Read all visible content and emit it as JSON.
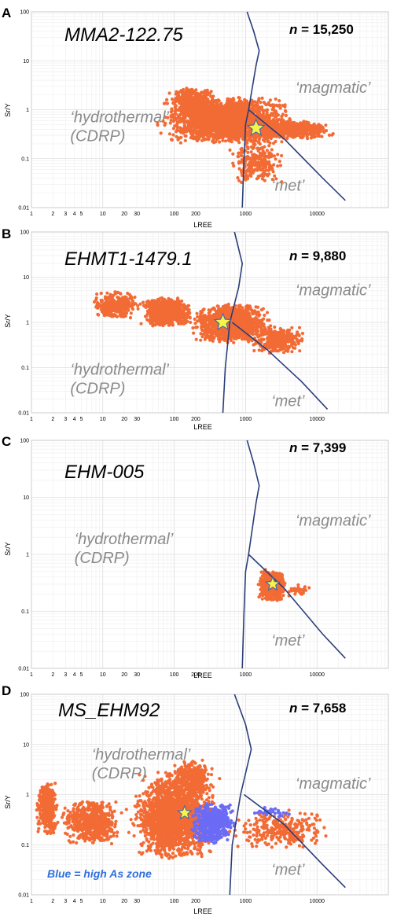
{
  "chart_data": [
    {
      "panel_letter": "A",
      "type": "scatter",
      "sample": "MMA2-122.75",
      "n_label": "n",
      "n_value": "= 15,250",
      "xlabel": "LREE",
      "ylabel": "Sr/Y",
      "xlim": [
        1,
        100000
      ],
      "ylim": [
        0.01,
        100
      ],
      "xscale": "log",
      "yscale": "log",
      "grid": true,
      "x_ticks": [
        "1",
        "2",
        "3",
        "4",
        "5",
        "10",
        "20",
        "30",
        "100",
        "200",
        "1000",
        "10000"
      ],
      "y_ticks": [
        "0.01",
        "0.1",
        "1",
        "10",
        "100"
      ],
      "regions": [
        {
          "lines": [
            "‘hydrothermal’",
            "(CDRP)"
          ],
          "x": 3.5,
          "y": 0.55
        },
        {
          "lines": [
            "‘magmatic’"
          ],
          "x": 5000,
          "y": 2.2
        },
        {
          "lines": [
            "‘met’"
          ],
          "x": 2300,
          "y": 0.022
        }
      ],
      "boundaries": [
        {
          "name": "vertical",
          "points": [
            [
              900,
              0.01
            ],
            [
              950,
              0.1
            ],
            [
              1000,
              0.5
            ],
            [
              1100,
              1
            ],
            [
              1400,
              8
            ],
            [
              1550,
              16
            ],
            [
              1300,
              40
            ],
            [
              1050,
              100
            ]
          ]
        },
        {
          "name": "diagonal",
          "points": [
            [
              1100,
              1
            ],
            [
              3500,
              0.25
            ],
            [
              12000,
              0.04
            ],
            [
              25000,
              0.014
            ]
          ]
        }
      ],
      "series": [
        {
          "color": "#F26B35",
          "clusters": [
            {
              "x": [
                50,
                6000
              ],
              "y": [
                0.2,
                1.8
              ],
              "n": 2200
            },
            {
              "x": [
                80,
                400
              ],
              "y": [
                0.8,
                2.8
              ],
              "n": 500
            },
            {
              "x": [
                700,
                20000
              ],
              "y": [
                0.25,
                0.6
              ],
              "n": 600
            },
            {
              "x": [
                500,
                4000
              ],
              "y": [
                0.03,
                0.25
              ],
              "n": 250
            }
          ]
        }
      ],
      "star": {
        "x": 1400,
        "y": 0.42
      }
    },
    {
      "panel_letter": "B",
      "type": "scatter",
      "sample": "EHMT1-1479.1",
      "n_label": "n",
      "n_value": "= 9,880",
      "xlabel": "LREE",
      "ylabel": "Sr/Y",
      "xlim": [
        1,
        100000
      ],
      "ylim": [
        0.01,
        100
      ],
      "xscale": "log",
      "yscale": "log",
      "grid": true,
      "x_ticks": [
        "1",
        "2",
        "3",
        "4",
        "5",
        "10",
        "20",
        "30",
        "100",
        "200",
        "1000",
        "10000"
      ],
      "y_ticks": [
        "0.01",
        "0.1",
        "1",
        "10",
        "100"
      ],
      "regions": [
        {
          "lines": [
            "‘hydrothermal’",
            "(CDRP)"
          ],
          "x": 3.5,
          "y": 0.07
        },
        {
          "lines": [
            "‘magmatic’"
          ],
          "x": 5000,
          "y": 4
        },
        {
          "lines": [
            "‘met’"
          ],
          "x": 2300,
          "y": 0.014
        }
      ],
      "boundaries": [
        {
          "name": "vertical",
          "points": [
            [
              480,
              0.01
            ],
            [
              520,
              0.1
            ],
            [
              600,
              1
            ],
            [
              800,
              6
            ],
            [
              900,
              20
            ],
            [
              700,
              100
            ]
          ]
        },
        {
          "name": "diagonal",
          "points": [
            [
              650,
              1
            ],
            [
              2000,
              0.25
            ],
            [
              6000,
              0.05
            ],
            [
              14000,
              0.012
            ]
          ]
        }
      ],
      "series": [
        {
          "color": "#F26B35",
          "clusters": [
            {
              "x": [
                6,
                40
              ],
              "y": [
                1.2,
                4.8
              ],
              "n": 300
            },
            {
              "x": [
                30,
                200
              ],
              "y": [
                0.8,
                3.5
              ],
              "n": 800
            },
            {
              "x": [
                150,
                2500
              ],
              "y": [
                0.35,
                2.6
              ],
              "n": 1400
            },
            {
              "x": [
                1000,
                8000
              ],
              "y": [
                0.2,
                0.8
              ],
              "n": 350
            }
          ]
        }
      ],
      "star": {
        "x": 480,
        "y": 1
      }
    },
    {
      "panel_letter": "C",
      "type": "scatter",
      "sample": "EHM-005",
      "n_label": "n",
      "n_value": "= 7,399",
      "xlabel": "LREE",
      "ylabel": "Sr/Y",
      "xlim": [
        1,
        100000
      ],
      "ylim": [
        0.01,
        100
      ],
      "xscale": "log",
      "yscale": "log",
      "grid": true,
      "x_ticks": [
        "1",
        "2",
        "3",
        "4",
        "5",
        "10",
        "20",
        "30",
        "100",
        "200",
        "1000",
        "10000"
      ],
      "y_ticks": [
        "0.01",
        "0.1",
        "1",
        "10",
        "100"
      ],
      "regions": [
        {
          "lines": [
            "‘hydrothermal’",
            "(CDRP)"
          ],
          "x": 4,
          "y": 1.5
        },
        {
          "lines": [
            "‘magmatic’"
          ],
          "x": 5000,
          "y": 3.2
        },
        {
          "lines": [
            "‘met’"
          ],
          "x": 2300,
          "y": 0.025
        }
      ],
      "boundaries": [
        {
          "name": "vertical",
          "points": [
            [
              900,
              0.01
            ],
            [
              950,
              0.1
            ],
            [
              1000,
              0.5
            ],
            [
              1100,
              1
            ],
            [
              1400,
              8
            ],
            [
              1550,
              16
            ],
            [
              1300,
              40
            ],
            [
              1050,
              100
            ]
          ]
        },
        {
          "name": "diagonal",
          "points": [
            [
              1100,
              1
            ],
            [
              3500,
              0.25
            ],
            [
              12000,
              0.04
            ],
            [
              25000,
              0.015
            ]
          ]
        }
      ],
      "series": [
        {
          "color": "#F26B35",
          "clusters": [
            {
              "x": [
                1400,
                4000
              ],
              "y": [
                0.15,
                0.55
              ],
              "n": 550
            },
            {
              "x": [
                3500,
                9000
              ],
              "y": [
                0.18,
                0.3
              ],
              "n": 30
            }
          ]
        }
      ],
      "star": {
        "x": 2400,
        "y": 0.3
      }
    },
    {
      "panel_letter": "D",
      "type": "scatter",
      "sample": "MS_EHM92",
      "n_label": "n",
      "n_value": "= 7,658",
      "xlabel": "LREE",
      "ylabel": "Sr/Y",
      "xlim": [
        1,
        100000
      ],
      "ylim": [
        0.01,
        100
      ],
      "xscale": "log",
      "yscale": "log",
      "grid": true,
      "x_ticks": [
        "1",
        "2",
        "3",
        "4",
        "5",
        "10",
        "20",
        "30",
        "100",
        "200",
        "1000",
        "10000"
      ],
      "y_ticks": [
        "0.01",
        "0.1",
        "1",
        "10",
        "100"
      ],
      "regions": [
        {
          "lines": [
            "‘hydrothermal’",
            "(CDRP)"
          ],
          "x": 7,
          "y": 5
        },
        {
          "lines": [
            "‘magmatic’"
          ],
          "x": 5000,
          "y": 1.3
        },
        {
          "lines": [
            "‘met’"
          ],
          "x": 2300,
          "y": 0.025
        }
      ],
      "boundaries": [
        {
          "name": "vertical",
          "points": [
            [
              600,
              0.01
            ],
            [
              650,
              0.1
            ],
            [
              850,
              1
            ],
            [
              1200,
              8
            ],
            [
              1000,
              25
            ],
            [
              700,
              100
            ]
          ]
        },
        {
          "name": "diagonal",
          "points": [
            [
              950,
              1
            ],
            [
              3500,
              0.25
            ],
            [
              12000,
              0.04
            ],
            [
              25000,
              0.014
            ]
          ]
        }
      ],
      "series": [
        {
          "color": "#F26B35",
          "clusters": [
            {
              "x": [
                1.1,
                2.5
              ],
              "y": [
                0.15,
                1.8
              ],
              "n": 400
            },
            {
              "x": [
                2.5,
                20
              ],
              "y": [
                0.1,
                0.8
              ],
              "n": 600
            },
            {
              "x": [
                20,
                500
              ],
              "y": [
                0.05,
                2.8
              ],
              "n": 1900
            },
            {
              "x": [
                80,
                400
              ],
              "y": [
                0.8,
                5
              ],
              "n": 300
            },
            {
              "x": [
                500,
                20000
              ],
              "y": [
                0.08,
                0.5
              ],
              "n": 300
            }
          ]
        },
        {
          "color": "#6B6BF5",
          "clusters": [
            {
              "x": [
                150,
                800
              ],
              "y": [
                0.1,
                0.7
              ],
              "n": 500
            },
            {
              "x": [
                1000,
                5000
              ],
              "y": [
                0.35,
                0.55
              ],
              "n": 30
            }
          ]
        }
      ],
      "star": {
        "x": 140,
        "y": 0.43
      },
      "note": "Blue = high As zone"
    }
  ]
}
